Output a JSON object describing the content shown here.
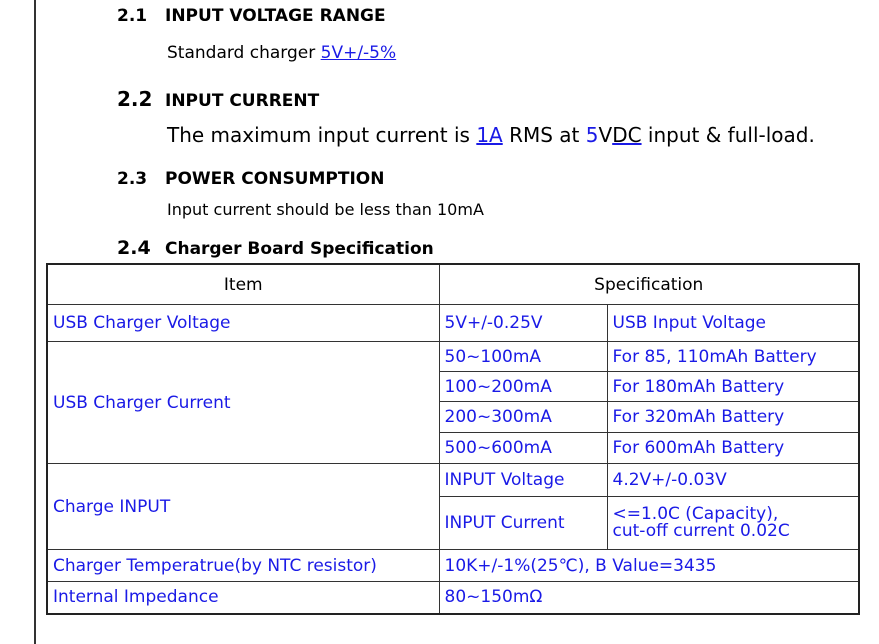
{
  "sections": [
    {
      "num": "2.1",
      "title": "INPUT VOLTAGE RANGE",
      "text": "Standard charger ",
      "link": "5V+/-5%"
    },
    {
      "num": "2.2",
      "title": "INPUT CURRENT",
      "t1": "The maximum input current is ",
      "l1": "1A",
      "t2": " RMS at ",
      "l2": "5",
      "t3": "V",
      "l3": "DC",
      "t4": " input & full-load."
    },
    {
      "num": "2.3",
      "title": "POWER CONSUMPTION",
      "text": "Input current should be less than 10mA"
    },
    {
      "num": "2.4",
      "title": "Charger Board Specification"
    }
  ],
  "table": {
    "headers": [
      "Item",
      "Specification"
    ],
    "voltage": {
      "item": "USB Charger Voltage",
      "spec": "5V+/-0.25V",
      "note": "USB Input Voltage"
    },
    "current": {
      "item": "USB Charger Current",
      "rows": [
        [
          "50~100mA",
          "For 85, 110mAh Battery"
        ],
        [
          "100~200mA",
          "For 180mAh Battery"
        ],
        [
          "200~300mA",
          "For 320mAh Battery"
        ],
        [
          "500~600mA",
          "For 600mAh Battery"
        ]
      ]
    },
    "charge": {
      "item": "Charge INPUT",
      "rows": [
        [
          "INPUT Voltage",
          "4.2V+/-0.03V"
        ],
        [
          "INPUT Current",
          "<=1.0C (Capacity),",
          "cut-off current 0.02C"
        ]
      ]
    },
    "temp": {
      "item": "Charger Temperatrue(by NTC resistor)",
      "spec": "10K+/-1%(25℃), B Value=3435"
    },
    "imp": {
      "item": "Internal Impedance",
      "spec": "80~150mΩ"
    }
  },
  "colors": {
    "blue": "#1a1ae6"
  }
}
